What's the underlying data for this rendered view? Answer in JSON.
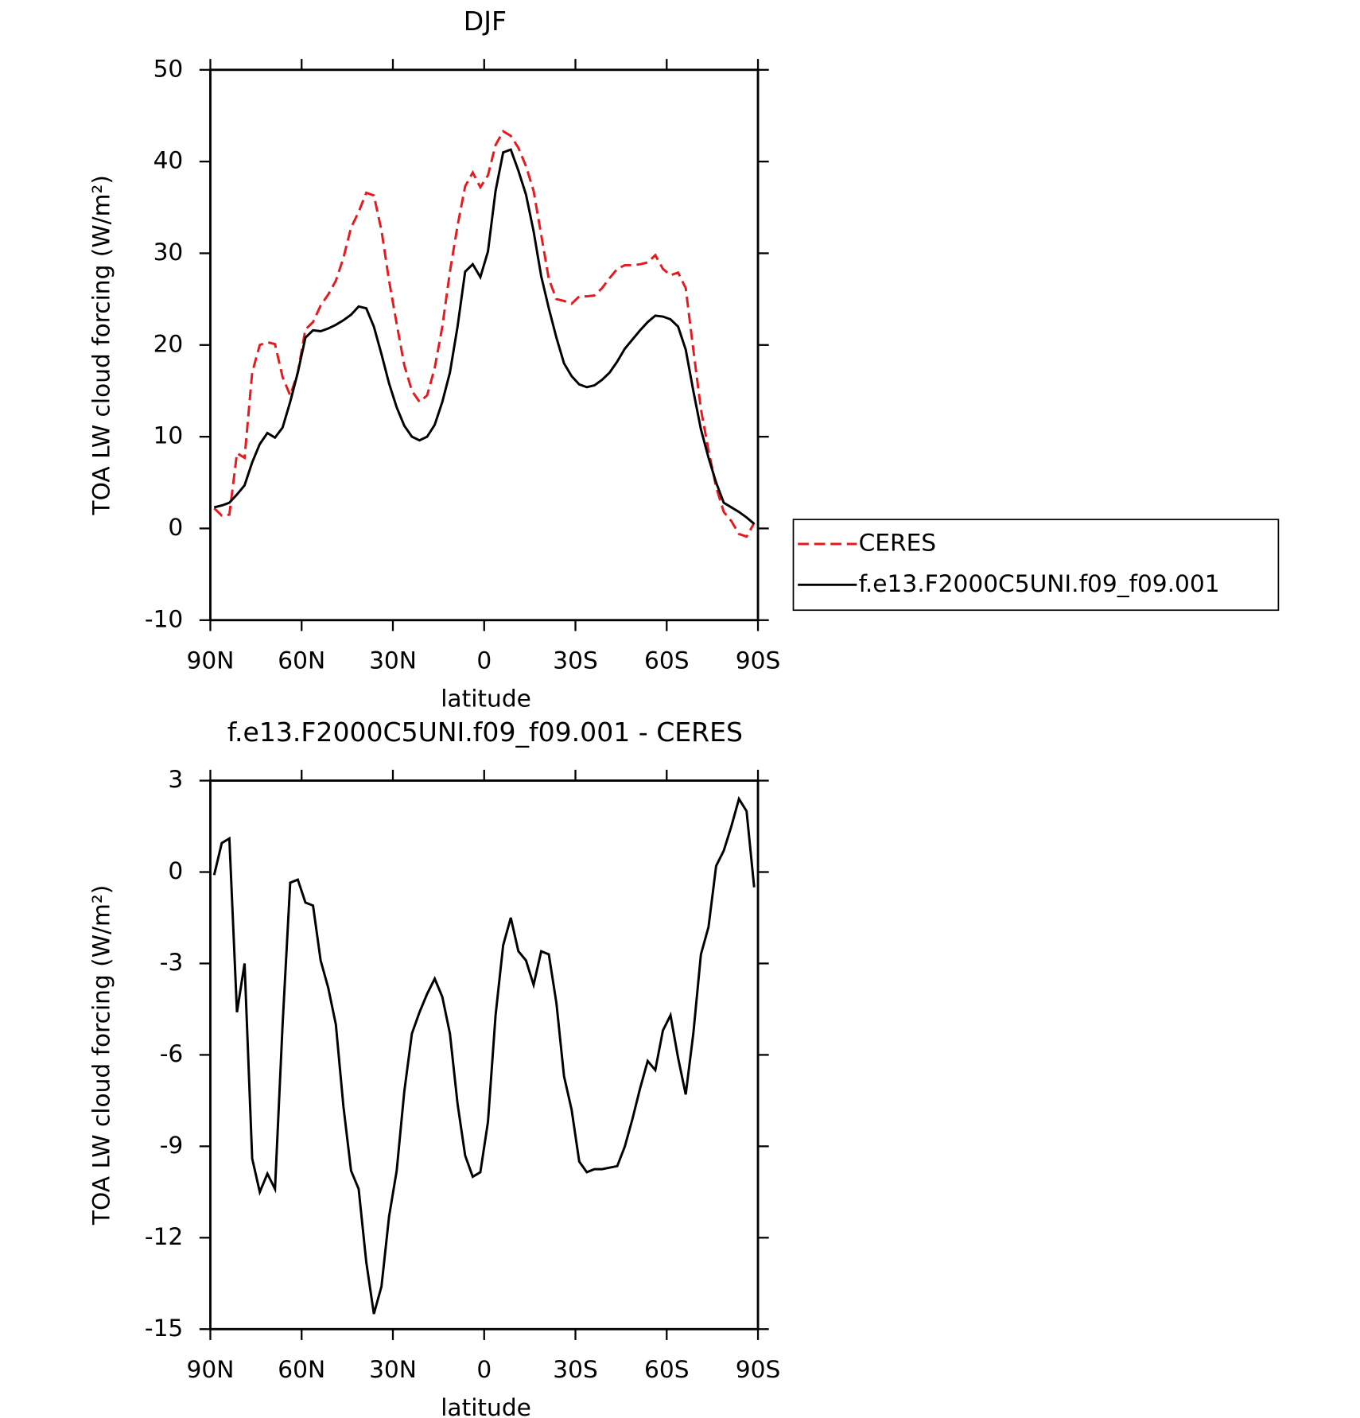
{
  "chart_data": [
    {
      "type": "line",
      "title": "DJF",
      "xlabel": "latitude",
      "ylabel": "TOA LW cloud forcing (W/m²)",
      "x": [
        88.75,
        86.25,
        83.75,
        81.25,
        78.75,
        76.25,
        73.75,
        71.25,
        68.75,
        66.25,
        63.75,
        61.25,
        58.75,
        56.25,
        53.75,
        51.25,
        48.75,
        46.25,
        43.75,
        41.25,
        38.75,
        36.25,
        33.75,
        31.25,
        28.75,
        26.25,
        23.75,
        21.25,
        18.75,
        16.25,
        13.75,
        11.25,
        8.75,
        6.25,
        3.75,
        1.25,
        -1.25,
        -3.75,
        -6.25,
        -8.75,
        -11.25,
        -13.75,
        -16.25,
        -18.75,
        -21.25,
        -23.75,
        -26.25,
        -28.75,
        -31.25,
        -33.75,
        -36.25,
        -38.75,
        -41.25,
        -43.75,
        -46.25,
        -48.75,
        -51.25,
        -53.75,
        -56.25,
        -58.75,
        -61.25,
        -63.75,
        -66.25,
        -68.75,
        -71.25,
        -73.75,
        -76.25,
        -78.75,
        -81.25,
        -83.75,
        -86.25,
        -88.75
      ],
      "series": [
        {
          "name": "CERES",
          "color": "#e8191e",
          "line_style": "dashed",
          "values": [
            2.2,
            1.4,
            1.5,
            8.2,
            7.7,
            17,
            20,
            20.3,
            20.1,
            16.5,
            14.5,
            17,
            21.7,
            22.5,
            24.3,
            25.5,
            27,
            29.5,
            32.8,
            34.5,
            36.6,
            36.3,
            32.5,
            27,
            22.3,
            17.8,
            15,
            13.8,
            14.5,
            17.5,
            22,
            28,
            33,
            37.3,
            38.8,
            37.2,
            38.5,
            41.8,
            43.3,
            42.8,
            41.5,
            39.5,
            36.8,
            32,
            27.2,
            25,
            24.8,
            24.5,
            25.3,
            25.3,
            25.4,
            26.2,
            27.3,
            28.3,
            28.7,
            28.7,
            28.8,
            29,
            29.8,
            28.3,
            27.6,
            27.9,
            26.2,
            19.5,
            13,
            8.5,
            4.5,
            1.8,
            0.8,
            -0.6,
            -0.9,
            0.6
          ]
        },
        {
          "name": "f.e13.F2000C5UNI.f09_f09.001",
          "color": "#000000",
          "line_style": "solid",
          "values": [
            2.3,
            2.5,
            2.8,
            3.7,
            4.7,
            7.2,
            9.2,
            10.4,
            9.9,
            11,
            13.8,
            17,
            20.8,
            21.6,
            21.5,
            21.8,
            22.2,
            22.7,
            23.3,
            24.2,
            24,
            22,
            19,
            15.8,
            13.2,
            11.2,
            10,
            9.6,
            10,
            11.3,
            13.8,
            17,
            22,
            28,
            28.8,
            27.4,
            30.2,
            36.8,
            41,
            41.3,
            39,
            36.4,
            32.4,
            27.5,
            24,
            20.8,
            18,
            16.6,
            15.7,
            15.4,
            15.6,
            16.2,
            17,
            18.2,
            19.6,
            20.6,
            21.6,
            22.5,
            23.2,
            23.1,
            22.8,
            22,
            19.5,
            15,
            10.8,
            7.7,
            5,
            2.8,
            2.3,
            1.8,
            1.2,
            0.5
          ]
        }
      ],
      "xlim": [
        90,
        -90
      ],
      "xticks": [
        {
          "value": 90,
          "label": "90N"
        },
        {
          "value": 60,
          "label": "60N"
        },
        {
          "value": 30,
          "label": "30N"
        },
        0,
        {
          "value": -30,
          "label": "30S"
        },
        {
          "value": -60,
          "label": "60S"
        },
        {
          "value": -90,
          "label": "90S"
        }
      ],
      "ylim": [
        -10,
        50
      ],
      "yticks": [
        -10,
        0,
        10,
        20,
        30,
        40,
        50
      ],
      "legend": "right"
    },
    {
      "type": "line",
      "title": "f.e13.F2000C5UNI.f09_f09.001 - CERES",
      "xlabel": "latitude",
      "ylabel": "TOA LW cloud forcing (W/m²)",
      "x": [
        88.75,
        86.25,
        83.75,
        81.25,
        78.75,
        76.25,
        73.75,
        71.25,
        68.75,
        66.25,
        63.75,
        61.25,
        58.75,
        56.25,
        53.75,
        51.25,
        48.75,
        46.25,
        43.75,
        41.25,
        38.75,
        36.25,
        33.75,
        31.25,
        28.75,
        26.25,
        23.75,
        21.25,
        18.75,
        16.25,
        13.75,
        11.25,
        8.75,
        6.25,
        3.75,
        1.25,
        -1.25,
        -3.75,
        -6.25,
        -8.75,
        -11.25,
        -13.75,
        -16.25,
        -18.75,
        -21.25,
        -23.75,
        -26.25,
        -28.75,
        -31.25,
        -33.75,
        -36.25,
        -38.75,
        -41.25,
        -43.75,
        -46.25,
        -48.75,
        -51.25,
        -53.75,
        -56.25,
        -58.75,
        -61.25,
        -63.75,
        -66.25,
        -68.75,
        -71.25,
        -73.75,
        -76.25,
        -78.75,
        -81.25,
        -83.75,
        -86.25,
        -88.75
      ],
      "series": [
        {
          "color": "#000000",
          "line_style": "solid",
          "values": [
            -0.1,
            0.95,
            1.1,
            -4.6,
            -3.0,
            -9.4,
            -10.5,
            -9.9,
            -10.4,
            -5,
            -0.35,
            -0.25,
            -1,
            -1.1,
            -2.9,
            -3.8,
            -5,
            -7.7,
            -9.8,
            -10.4,
            -12.8,
            -14.5,
            -13.6,
            -11.3,
            -9.8,
            -7.2,
            -5.3,
            -4.6,
            -4,
            -3.5,
            -4.1,
            -5.3,
            -7.6,
            -9.3,
            -10,
            -9.85,
            -8.2,
            -4.7,
            -2.4,
            -1.5,
            -2.6,
            -2.9,
            -3.7,
            -2.6,
            -2.7,
            -4.3,
            -6.7,
            -7.8,
            -9.5,
            -9.85,
            -9.75,
            -9.75,
            -9.7,
            -9.65,
            -9,
            -8.1,
            -7.1,
            -6.2,
            -6.5,
            -5.2,
            -4.7,
            -6.1,
            -7.3,
            -5.3,
            -2.7,
            -1.8,
            0.2,
            0.7,
            1.5,
            2.4,
            2,
            -0.5
          ]
        }
      ],
      "xlim": [
        90,
        -90
      ],
      "xticks": [
        {
          "value": 90,
          "label": "90N"
        },
        {
          "value": 60,
          "label": "60N"
        },
        {
          "value": 30,
          "label": "30N"
        },
        0,
        {
          "value": -30,
          "label": "30S"
        },
        {
          "value": -60,
          "label": "60S"
        },
        {
          "value": -90,
          "label": "90S"
        }
      ],
      "ylim": [
        -15,
        3
      ],
      "yticks": [
        -15,
        -12,
        -9,
        -6,
        -3,
        0,
        3
      ]
    }
  ]
}
